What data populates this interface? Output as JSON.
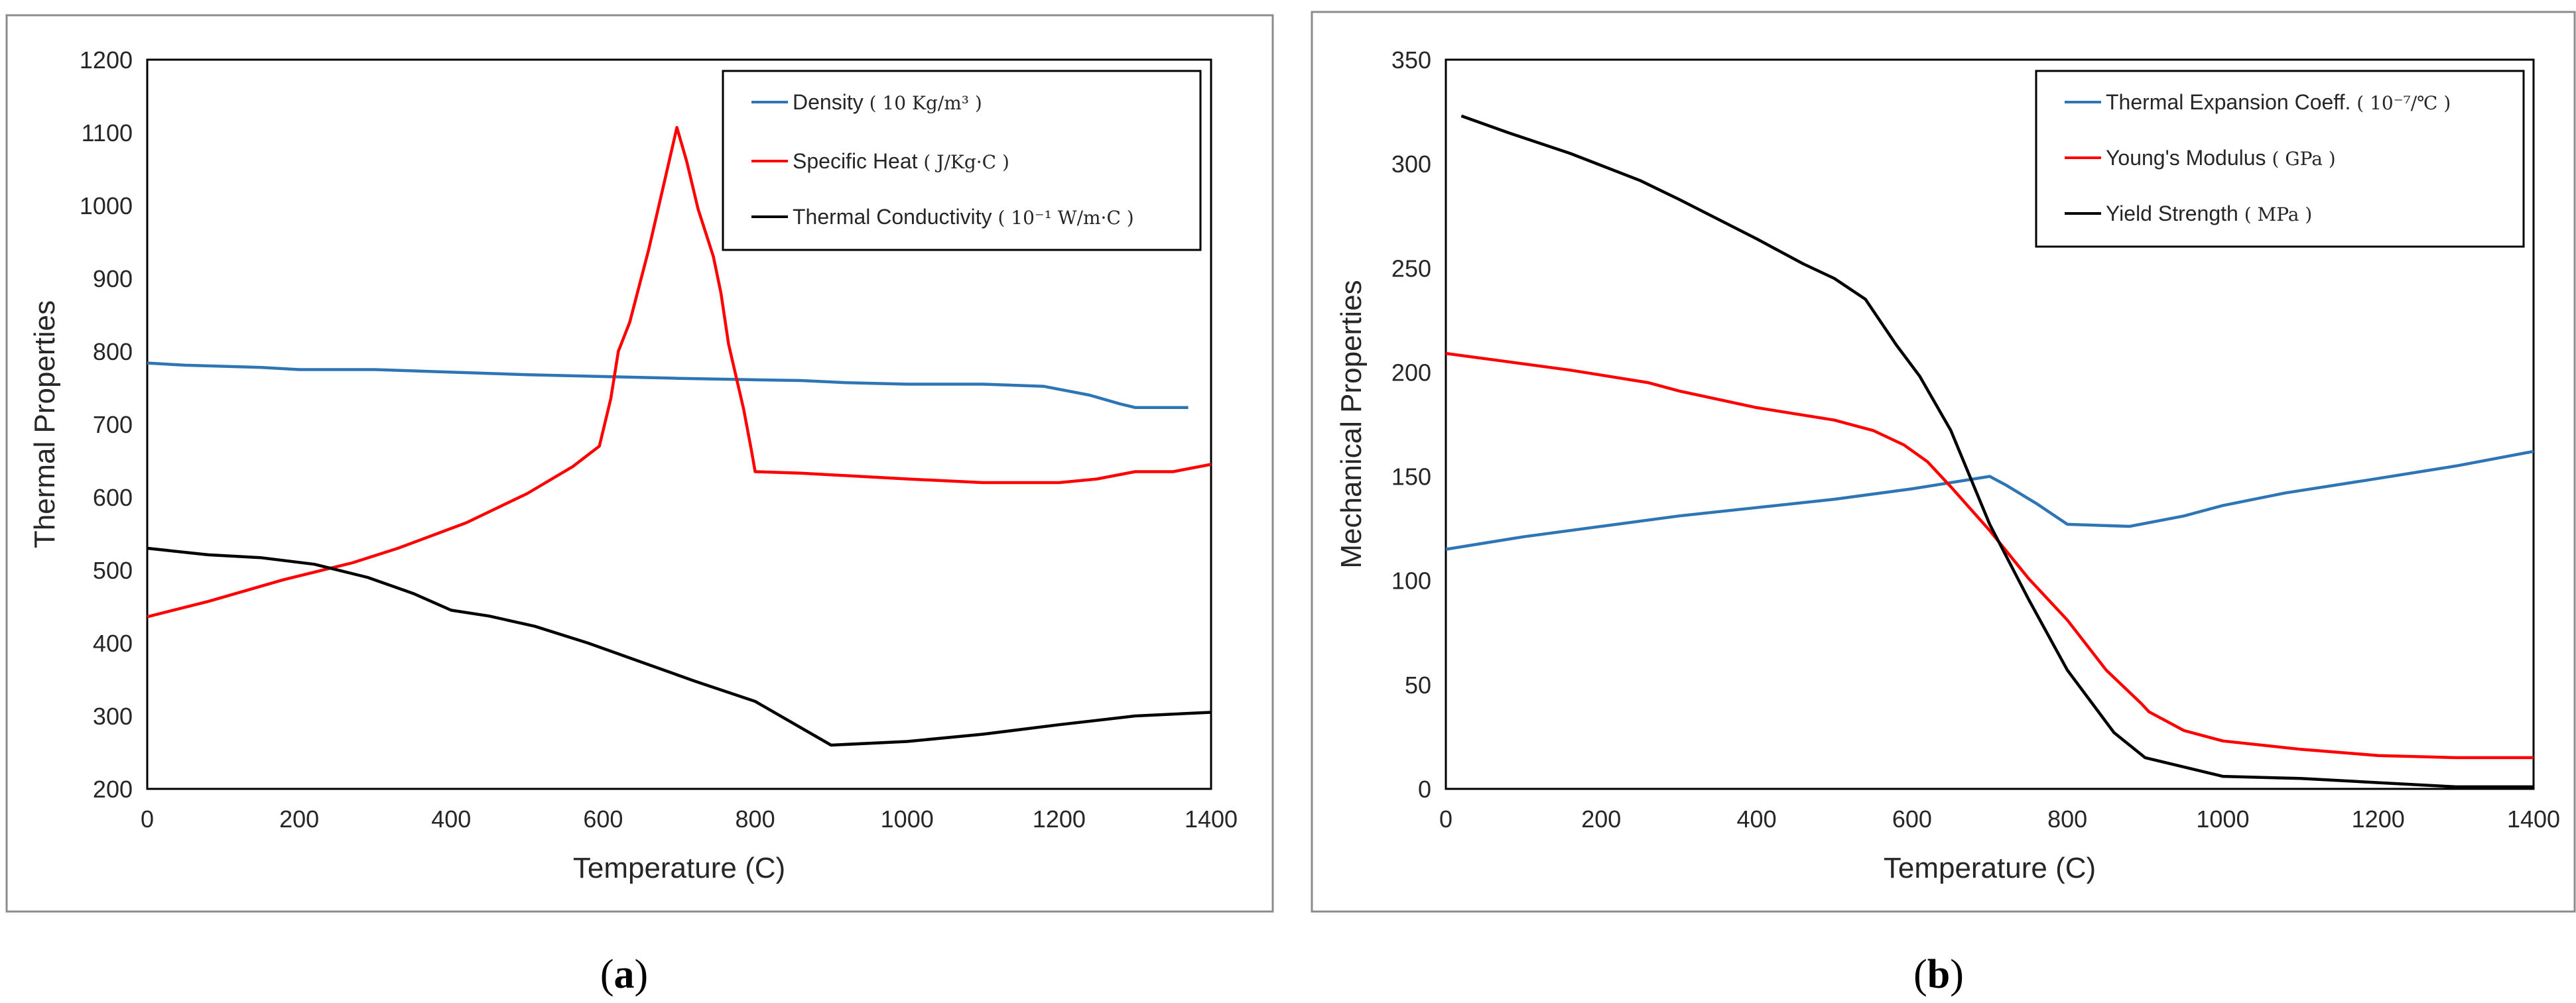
{
  "chart_data": [
    {
      "type": "line",
      "panel_label": "a",
      "xlabel": "Temperature (C)",
      "ylabel": "Thermal Properties",
      "xlim": [
        0,
        1400
      ],
      "ylim": [
        200,
        1200
      ],
      "xticks": [
        0,
        200,
        400,
        600,
        800,
        1000,
        1200,
        1400
      ],
      "yticks": [
        200,
        300,
        400,
        500,
        600,
        700,
        800,
        900,
        1000,
        1100,
        1200
      ],
      "legend_position": "top-right",
      "grid": false,
      "series": [
        {
          "name": "Density",
          "unit": "( 10 Kg/m³ )",
          "color": "#2e75b6",
          "points": [
            [
              0,
              784
            ],
            [
              50,
              781
            ],
            [
              150,
              778
            ],
            [
              200,
              775
            ],
            [
              300,
              775
            ],
            [
              500,
              768
            ],
            [
              700,
              763
            ],
            [
              800,
              761
            ],
            [
              860,
              760
            ],
            [
              920,
              757
            ],
            [
              1000,
              755
            ],
            [
              1100,
              755
            ],
            [
              1180,
              752
            ],
            [
              1240,
              740
            ],
            [
              1280,
              728
            ],
            [
              1300,
              723
            ],
            [
              1340,
              723
            ],
            [
              1370,
              723
            ]
          ]
        },
        {
          "name": "Specific Heat",
          "unit": "( J/Kg·C )",
          "color": "#ff0000",
          "points": [
            [
              0,
              436
            ],
            [
              80,
              457
            ],
            [
              180,
              487
            ],
            [
              270,
              510
            ],
            [
              330,
              530
            ],
            [
              420,
              565
            ],
            [
              500,
              605
            ],
            [
              560,
              642
            ],
            [
              595,
              670
            ],
            [
              610,
              735
            ],
            [
              620,
              800
            ],
            [
              635,
              840
            ],
            [
              660,
              940
            ],
            [
              680,
              1030
            ],
            [
              697,
              1107
            ],
            [
              710,
              1060
            ],
            [
              725,
              995
            ],
            [
              745,
              930
            ],
            [
              755,
              880
            ],
            [
              765,
              810
            ],
            [
              785,
              720
            ],
            [
              795,
              665
            ],
            [
              800,
              635
            ],
            [
              860,
              633
            ],
            [
              1000,
              625
            ],
            [
              1100,
              620
            ],
            [
              1200,
              620
            ],
            [
              1250,
              625
            ],
            [
              1300,
              635
            ],
            [
              1350,
              635
            ],
            [
              1400,
              645
            ]
          ]
        },
        {
          "name": "Thermal Conductivity",
          "unit": "( 10⁻¹ W/m·C )",
          "color": "#000000",
          "points": [
            [
              0,
              530
            ],
            [
              80,
              521
            ],
            [
              150,
              517
            ],
            [
              220,
              508
            ],
            [
              290,
              490
            ],
            [
              350,
              468
            ],
            [
              400,
              445
            ],
            [
              450,
              437
            ],
            [
              510,
              423
            ],
            [
              580,
              400
            ],
            [
              650,
              374
            ],
            [
              720,
              348
            ],
            [
              800,
              320
            ],
            [
              900,
              260
            ],
            [
              1000,
              265
            ],
            [
              1100,
              275
            ],
            [
              1200,
              288
            ],
            [
              1300,
              300
            ],
            [
              1400,
              305
            ]
          ]
        }
      ]
    },
    {
      "type": "line",
      "panel_label": "b",
      "xlabel": "Temperature (C)",
      "ylabel": "Mechanical Properties",
      "xlim": [
        0,
        1400
      ],
      "ylim": [
        0,
        350
      ],
      "xticks": [
        0,
        200,
        400,
        600,
        800,
        1000,
        1200,
        1400
      ],
      "yticks": [
        0,
        50,
        100,
        150,
        200,
        250,
        300,
        350
      ],
      "legend_position": "top-right",
      "grid": false,
      "series": [
        {
          "name": "Thermal Expansion Coeff.",
          "unit": "( 10⁻⁷/℃ )",
          "color": "#2e75b6",
          "points": [
            [
              0,
              115
            ],
            [
              100,
              121
            ],
            [
              200,
              126
            ],
            [
              300,
              131
            ],
            [
              400,
              135
            ],
            [
              500,
              139
            ],
            [
              600,
              144
            ],
            [
              700,
              150
            ],
            [
              720,
              146
            ],
            [
              760,
              137
            ],
            [
              800,
              127
            ],
            [
              880,
              126
            ],
            [
              950,
              131
            ],
            [
              1000,
              136
            ],
            [
              1080,
              142
            ],
            [
              1200,
              149
            ],
            [
              1300,
              155
            ],
            [
              1400,
              162
            ]
          ]
        },
        {
          "name": "Young's Modulus",
          "unit": "( GPa )",
          "color": "#ff0000",
          "points": [
            [
              0,
              209
            ],
            [
              80,
              205
            ],
            [
              160,
              201
            ],
            [
              260,
              195
            ],
            [
              300,
              191
            ],
            [
              400,
              183
            ],
            [
              500,
              177
            ],
            [
              550,
              172
            ],
            [
              590,
              165
            ],
            [
              620,
              157
            ],
            [
              650,
              145
            ],
            [
              700,
              124
            ],
            [
              750,
              101
            ],
            [
              800,
              81
            ],
            [
              850,
              57
            ],
            [
              895,
              41
            ],
            [
              905,
              37
            ],
            [
              950,
              28
            ],
            [
              1000,
              23
            ],
            [
              1100,
              19
            ],
            [
              1200,
              16
            ],
            [
              1300,
              15
            ],
            [
              1400,
              15
            ]
          ]
        },
        {
          "name": "Yield Strength",
          "unit": "( MPa )",
          "color": "#000000",
          "points": [
            [
              20,
              323
            ],
            [
              80,
              315
            ],
            [
              160,
              305
            ],
            [
              250,
              292
            ],
            [
              300,
              283
            ],
            [
              400,
              264
            ],
            [
              460,
              252
            ],
            [
              500,
              245
            ],
            [
              540,
              235
            ],
            [
              580,
              213
            ],
            [
              610,
              198
            ],
            [
              650,
              172
            ],
            [
              700,
              127
            ],
            [
              750,
              91
            ],
            [
              800,
              57
            ],
            [
              860,
              27
            ],
            [
              900,
              15
            ],
            [
              1000,
              6
            ],
            [
              1100,
              5
            ],
            [
              1200,
              3
            ],
            [
              1300,
              1
            ],
            [
              1320,
              1
            ],
            [
              1400,
              1
            ]
          ]
        }
      ]
    }
  ]
}
